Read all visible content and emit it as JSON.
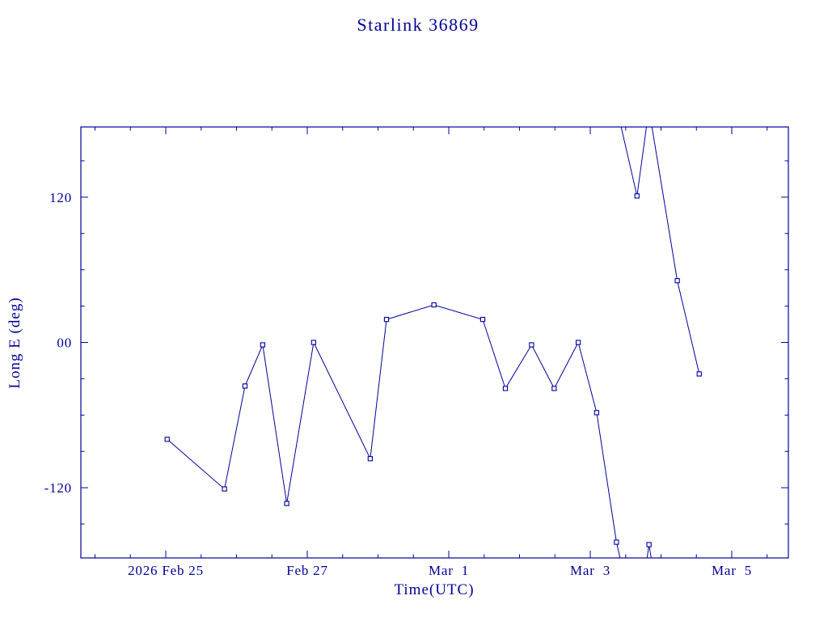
{
  "page": {
    "background": "#ffffff"
  },
  "chart_data": {
    "type": "line",
    "title": "Starlink 36869",
    "xlabel": "Time(UTC)",
    "ylabel": "Long E (deg)",
    "color": "#000099",
    "background": "#ffffff",
    "legend": "none",
    "grid": false,
    "x_units": "days since first x tick (2026 Feb 25 00:00 UTC)",
    "xlim": [
      -1.2,
      8.8
    ],
    "ylim": [
      -178,
      178
    ],
    "x_major_ticks": [
      0,
      2,
      4,
      6,
      8
    ],
    "x_tick_labels": [
      "2026 Feb 25",
      "Feb 27",
      "Mar  1",
      "Mar  3",
      "Mar  5"
    ],
    "x_minor_step": 0.5,
    "y_major_ticks": [
      -120,
      0,
      120
    ],
    "y_tick_labels": [
      "-120",
      "00",
      "120"
    ],
    "y_minor_step": 30,
    "wrap_at": 180,
    "series": [
      {
        "name": "Long E",
        "marker": "open-square",
        "x": [
          0.02,
          0.83,
          1.12,
          1.37,
          1.71,
          2.09,
          2.89,
          3.12,
          3.79,
          4.48,
          4.8,
          5.17,
          5.49,
          5.83,
          6.09,
          6.37,
          6.66,
          6.83,
          7.23,
          7.54
        ],
        "y": [
          -80,
          -121,
          -36,
          -2,
          -133,
          0,
          -96,
          19,
          31,
          19,
          -38,
          -2,
          -38,
          0,
          -58,
          -165,
          121,
          -167,
          51,
          -26
        ]
      }
    ]
  }
}
